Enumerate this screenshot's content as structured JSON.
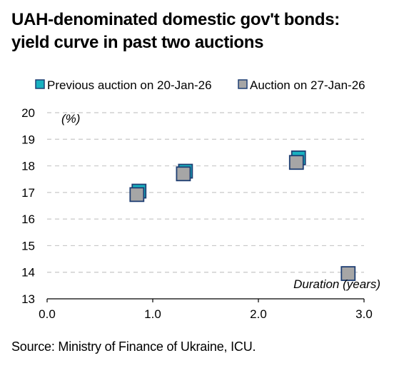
{
  "title": {
    "line1": "UAH-denominated domestic gov't bonds:",
    "line2": "yield curve in past two auctions"
  },
  "source": "Source: Ministry of Finance of Ukraine, ICU.",
  "chart_data": {
    "type": "scatter",
    "title": "UAH-denominated domestic gov't bonds: yield curve in past two auctions",
    "ylabel": "(%)",
    "xlabel": "Duration (years)",
    "xlim": [
      0.0,
      3.0
    ],
    "ylim": [
      13,
      20
    ],
    "x_ticks": [
      0.0,
      1.0,
      2.0,
      3.0
    ],
    "x_tick_labels": [
      "0.0",
      "1.0",
      "2.0",
      "3.0"
    ],
    "y_ticks": [
      13,
      14,
      15,
      16,
      17,
      18,
      19,
      20
    ],
    "y_tick_labels": [
      "13",
      "14",
      "15",
      "16",
      "17",
      "18",
      "19",
      "20"
    ],
    "grid": "horizontal dashed",
    "legend_position": "top",
    "series": [
      {
        "name": "Previous auction on 20-Jan-26",
        "color": "#17b1c0",
        "border": "#1f3f73",
        "points": [
          {
            "x": 0.87,
            "y": 17.05
          },
          {
            "x": 1.31,
            "y": 17.8
          },
          {
            "x": 2.38,
            "y": 18.3
          }
        ]
      },
      {
        "name": "Auction on 27-Jan-26",
        "color": "#a6a6a6",
        "border": "#1f3f73",
        "points": [
          {
            "x": 0.85,
            "y": 16.92
          },
          {
            "x": 1.29,
            "y": 17.7
          },
          {
            "x": 2.36,
            "y": 18.13
          },
          {
            "x": 2.85,
            "y": 13.95
          }
        ]
      }
    ]
  }
}
